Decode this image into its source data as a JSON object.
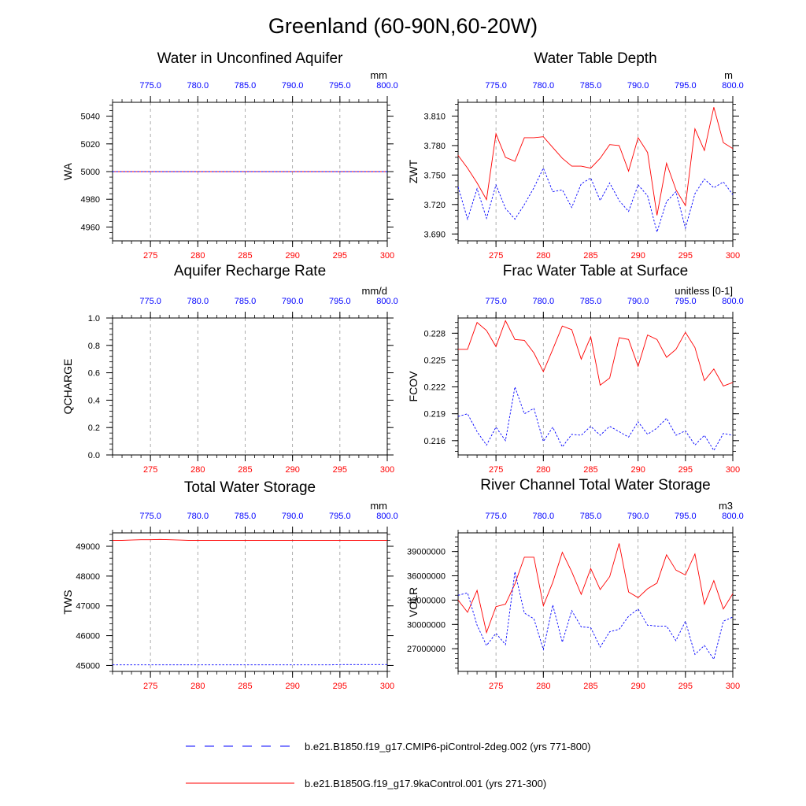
{
  "page_title": "Greenland (60-90N,60-20W)",
  "colors": {
    "red_series": "#ff0000",
    "blue_series": "#0000ff",
    "grid": "#999999"
  },
  "legend": {
    "items": [
      {
        "label": "b.e21.B1850.f19_g17.CMIP6-piControl-2deg.002 (yrs 771-800)",
        "color": "#0000ff",
        "style": "dashed"
      },
      {
        "label": "b.e21.B1850G.f19_g17.9kaControl.001 (yrs 271-300)",
        "color": "#ff0000",
        "style": "solid"
      }
    ]
  },
  "chart_data": [
    {
      "id": "wa",
      "type": "line",
      "title": "Water in Unconfined Aquifer",
      "ylabel": "WA",
      "units": "mm",
      "ylim": [
        4950,
        5050
      ],
      "yticks": [
        4960,
        4980,
        5000,
        5020,
        5040
      ],
      "ytick_labels": [
        "4960",
        "4980",
        "5000",
        "5020",
        "5040"
      ],
      "x_bottom": {
        "lim": [
          271,
          300
        ],
        "ticks": [
          275,
          280,
          285,
          290,
          295,
          300
        ],
        "labels": [
          "275",
          "280",
          "285",
          "290",
          "295",
          "300"
        ]
      },
      "x_top": {
        "lim": [
          771,
          800
        ],
        "ticks": [
          775,
          780,
          785,
          790,
          795,
          800
        ],
        "labels": [
          "775.0",
          "780.0",
          "785.0",
          "790.0",
          "795.0",
          "800.0"
        ]
      },
      "series": [
        {
          "color": "#ff0000",
          "style": "solid",
          "x": [
            271,
            300
          ],
          "values": [
            5000,
            5000
          ]
        },
        {
          "color": "#0000ff",
          "style": "dashed",
          "x": [
            771,
            800
          ],
          "values": [
            5000,
            5000
          ]
        }
      ]
    },
    {
      "id": "zwt",
      "type": "line",
      "title": "Water Table Depth",
      "ylabel": "ZWT",
      "units": "m",
      "ylim": [
        3.683,
        3.824
      ],
      "yticks": [
        3.69,
        3.72,
        3.75,
        3.78,
        3.81
      ],
      "ytick_labels": [
        "3.690",
        "3.720",
        "3.750",
        "3.780",
        "3.810"
      ],
      "x_bottom": {
        "lim": [
          271,
          300
        ],
        "ticks": [
          275,
          280,
          285,
          290,
          295,
          300
        ],
        "labels": [
          "275",
          "280",
          "285",
          "290",
          "295",
          "300"
        ]
      },
      "x_top": {
        "lim": [
          771,
          800
        ],
        "ticks": [
          775,
          780,
          785,
          790,
          795,
          800
        ],
        "labels": [
          "775.0",
          "780.0",
          "785.0",
          "790.0",
          "795.0",
          "800.0"
        ]
      },
      "series": [
        {
          "color": "#ff0000",
          "style": "solid",
          "x": [
            271,
            272,
            273,
            274,
            275,
            276,
            277,
            278,
            279,
            280,
            281,
            282,
            283,
            284,
            285,
            286,
            287,
            288,
            289,
            290,
            291,
            292,
            293,
            294,
            295,
            296,
            297,
            298,
            299,
            300
          ],
          "values": [
            3.77,
            3.757,
            3.742,
            3.725,
            3.792,
            3.768,
            3.764,
            3.788,
            3.788,
            3.789,
            3.778,
            3.767,
            3.759,
            3.759,
            3.757,
            3.767,
            3.781,
            3.78,
            3.754,
            3.788,
            3.773,
            3.709,
            3.762,
            3.735,
            3.719,
            3.797,
            3.775,
            3.819,
            3.783,
            3.777
          ]
        },
        {
          "color": "#0000ff",
          "style": "dashed",
          "x": [
            771,
            772,
            773,
            774,
            775,
            776,
            777,
            778,
            779,
            780,
            781,
            782,
            783,
            784,
            785,
            786,
            787,
            788,
            789,
            790,
            791,
            792,
            793,
            794,
            795,
            796,
            797,
            798,
            799,
            800
          ],
          "values": [
            3.738,
            3.705,
            3.736,
            3.706,
            3.74,
            3.716,
            3.705,
            3.72,
            3.737,
            3.757,
            3.733,
            3.735,
            3.717,
            3.741,
            3.747,
            3.724,
            3.742,
            3.724,
            3.713,
            3.74,
            3.729,
            3.692,
            3.723,
            3.733,
            3.696,
            3.731,
            3.746,
            3.737,
            3.743,
            3.73
          ]
        }
      ]
    },
    {
      "id": "qcharge",
      "type": "line",
      "title": "Aquifer Recharge Rate",
      "ylabel": "QCHARGE",
      "units": "mm/d",
      "ylim": [
        0,
        1
      ],
      "yticks": [
        0,
        0.2,
        0.4,
        0.6,
        0.8,
        1.0
      ],
      "ytick_labels": [
        "0.0",
        "0.2",
        "0.4",
        "0.6",
        "0.8",
        "1.0"
      ],
      "x_bottom": {
        "lim": [
          271,
          300
        ],
        "ticks": [
          275,
          280,
          285,
          290,
          295,
          300
        ],
        "labels": [
          "275",
          "280",
          "285",
          "290",
          "295",
          "300"
        ]
      },
      "x_top": {
        "lim": [
          771,
          800
        ],
        "ticks": [
          775,
          780,
          785,
          790,
          795,
          800
        ],
        "labels": [
          "775.0",
          "780.0",
          "785.0",
          "790.0",
          "795.0",
          "800.0"
        ]
      },
      "series": []
    },
    {
      "id": "fcov",
      "type": "line",
      "title": "Frac Water Table at Surface",
      "ylabel": "FCOV",
      "units": "unitless [0-1]",
      "ylim": [
        0.2144,
        0.2297
      ],
      "yticks": [
        0.216,
        0.219,
        0.222,
        0.225,
        0.228
      ],
      "ytick_labels": [
        "0.216",
        "0.219",
        "0.222",
        "0.225",
        "0.228"
      ],
      "x_bottom": {
        "lim": [
          271,
          300
        ],
        "ticks": [
          275,
          280,
          285,
          290,
          295,
          300
        ],
        "labels": [
          "275",
          "280",
          "285",
          "290",
          "295",
          "300"
        ]
      },
      "x_top": {
        "lim": [
          771,
          800
        ],
        "ticks": [
          775,
          780,
          785,
          790,
          795,
          800
        ],
        "labels": [
          "775.0",
          "780.0",
          "785.0",
          "790.0",
          "795.0",
          "800.0"
        ]
      },
      "series": [
        {
          "color": "#ff0000",
          "style": "solid",
          "x": [
            271,
            272,
            273,
            274,
            275,
            276,
            277,
            278,
            279,
            280,
            281,
            282,
            283,
            284,
            285,
            286,
            287,
            288,
            289,
            290,
            291,
            292,
            293,
            294,
            295,
            296,
            297,
            298,
            299,
            300
          ],
          "values": [
            0.2262,
            0.2262,
            0.2292,
            0.2283,
            0.2265,
            0.2294,
            0.2273,
            0.2272,
            0.2258,
            0.2237,
            0.2262,
            0.2288,
            0.2284,
            0.2251,
            0.2276,
            0.2222,
            0.223,
            0.2275,
            0.2273,
            0.2243,
            0.2278,
            0.2273,
            0.2253,
            0.2262,
            0.2281,
            0.2264,
            0.2227,
            0.224,
            0.2221,
            0.2225
          ]
        },
        {
          "color": "#0000ff",
          "style": "dashed",
          "x": [
            771,
            772,
            773,
            774,
            775,
            776,
            777,
            778,
            779,
            780,
            781,
            782,
            783,
            784,
            785,
            786,
            787,
            788,
            789,
            790,
            791,
            792,
            793,
            794,
            795,
            796,
            797,
            798,
            799,
            800
          ],
          "values": [
            0.2187,
            0.219,
            0.217,
            0.2155,
            0.2175,
            0.216,
            0.222,
            0.219,
            0.2196,
            0.2159,
            0.2175,
            0.2153,
            0.2167,
            0.2166,
            0.2176,
            0.2166,
            0.2176,
            0.217,
            0.2164,
            0.2181,
            0.2167,
            0.2174,
            0.2185,
            0.2166,
            0.2171,
            0.2155,
            0.2166,
            0.2149,
            0.2168,
            0.2166
          ]
        }
      ]
    },
    {
      "id": "tws",
      "type": "line",
      "title": "Total Water Storage",
      "ylabel": "TWS",
      "units": "mm",
      "ylim": [
        44800,
        49450
      ],
      "yticks": [
        45000,
        46000,
        47000,
        48000,
        49000
      ],
      "ytick_labels": [
        "45000",
        "46000",
        "47000",
        "48000",
        "49000"
      ],
      "x_bottom": {
        "lim": [
          271,
          300
        ],
        "ticks": [
          275,
          280,
          285,
          290,
          295,
          300
        ],
        "labels": [
          "275",
          "280",
          "285",
          "290",
          "295",
          "300"
        ]
      },
      "x_top": {
        "lim": [
          771,
          800
        ],
        "ticks": [
          775,
          780,
          785,
          790,
          795,
          800
        ],
        "labels": [
          "775.0",
          "780.0",
          "785.0",
          "790.0",
          "795.0",
          "800.0"
        ]
      },
      "series": [
        {
          "color": "#ff0000",
          "style": "solid",
          "x": [
            271,
            272,
            273,
            274,
            275,
            276,
            277,
            278,
            279,
            280,
            281,
            282,
            283,
            284,
            285,
            286,
            287,
            288,
            289,
            290,
            291,
            292,
            293,
            294,
            295,
            296,
            297,
            298,
            299,
            300
          ],
          "values": [
            49200,
            49200,
            49210,
            49220,
            49220,
            49230,
            49220,
            49210,
            49200,
            49200,
            49200,
            49200,
            49200,
            49200,
            49200,
            49200,
            49200,
            49200,
            49200,
            49200,
            49200,
            49200,
            49200,
            49200,
            49200,
            49200,
            49200,
            49200,
            49200,
            49200
          ]
        },
        {
          "color": "#0000ff",
          "style": "dashed",
          "x": [
            771,
            772,
            773,
            774,
            775,
            776,
            777,
            778,
            779,
            780,
            781,
            782,
            783,
            784,
            785,
            786,
            787,
            788,
            789,
            790,
            791,
            792,
            793,
            794,
            795,
            796,
            797,
            798,
            799,
            800
          ],
          "values": [
            45020,
            45020,
            45020,
            45020,
            45020,
            45020,
            45020,
            45020,
            45020,
            45020,
            45020,
            45020,
            45020,
            45020,
            45020,
            45020,
            45020,
            45020,
            45020,
            45020,
            45020,
            45020,
            45020,
            45020,
            45030,
            45030,
            45030,
            45030,
            45030,
            45030
          ]
        }
      ]
    },
    {
      "id": "volr",
      "type": "line",
      "title": "River Channel Total Water Storage",
      "ylabel": "VOLR",
      "units": "m3",
      "ylim": [
        24200000,
        41300000
      ],
      "yticks": [
        27000000,
        30000000,
        33000000,
        36000000,
        39000000
      ],
      "ytick_labels": [
        "27000000",
        "30000000",
        "33000000",
        "36000000",
        "39000000"
      ],
      "x_bottom": {
        "lim": [
          271,
          300
        ],
        "ticks": [
          275,
          280,
          285,
          290,
          295,
          300
        ],
        "labels": [
          "275",
          "280",
          "285",
          "290",
          "295",
          "300"
        ]
      },
      "x_top": {
        "lim": [
          771,
          800
        ],
        "ticks": [
          775,
          780,
          785,
          790,
          795,
          800
        ],
        "labels": [
          "775.0",
          "780.0",
          "785.0",
          "790.0",
          "795.0",
          "800.0"
        ]
      },
      "series": [
        {
          "color": "#ff0000",
          "style": "solid",
          "x": [
            271,
            272,
            273,
            274,
            275,
            276,
            277,
            278,
            279,
            280,
            281,
            282,
            283,
            284,
            285,
            286,
            287,
            288,
            289,
            290,
            291,
            292,
            293,
            294,
            295,
            296,
            297,
            298,
            299,
            300
          ],
          "values": [
            33000000,
            31500000,
            34200000,
            29000000,
            32200000,
            32500000,
            35000000,
            38300000,
            38300000,
            32300000,
            35200000,
            38900000,
            36500000,
            33700000,
            36900000,
            34300000,
            35900000,
            40000000,
            34000000,
            33300000,
            34400000,
            35100000,
            38600000,
            36700000,
            36100000,
            38700000,
            32500000,
            35400000,
            31900000,
            33800000
          ]
        },
        {
          "color": "#0000ff",
          "style": "dashed",
          "x": [
            771,
            772,
            773,
            774,
            775,
            776,
            777,
            778,
            779,
            780,
            781,
            782,
            783,
            784,
            785,
            786,
            787,
            788,
            789,
            790,
            791,
            792,
            793,
            794,
            795,
            796,
            797,
            798,
            799,
            800
          ],
          "values": [
            33600000,
            33900000,
            29900000,
            27400000,
            28900000,
            27500000,
            36500000,
            31400000,
            30700000,
            26900000,
            32400000,
            27800000,
            31700000,
            29700000,
            29600000,
            27200000,
            29100000,
            29400000,
            31000000,
            31900000,
            29900000,
            29800000,
            29800000,
            28000000,
            30400000,
            26300000,
            27400000,
            25700000,
            30400000,
            30900000
          ]
        }
      ]
    }
  ]
}
